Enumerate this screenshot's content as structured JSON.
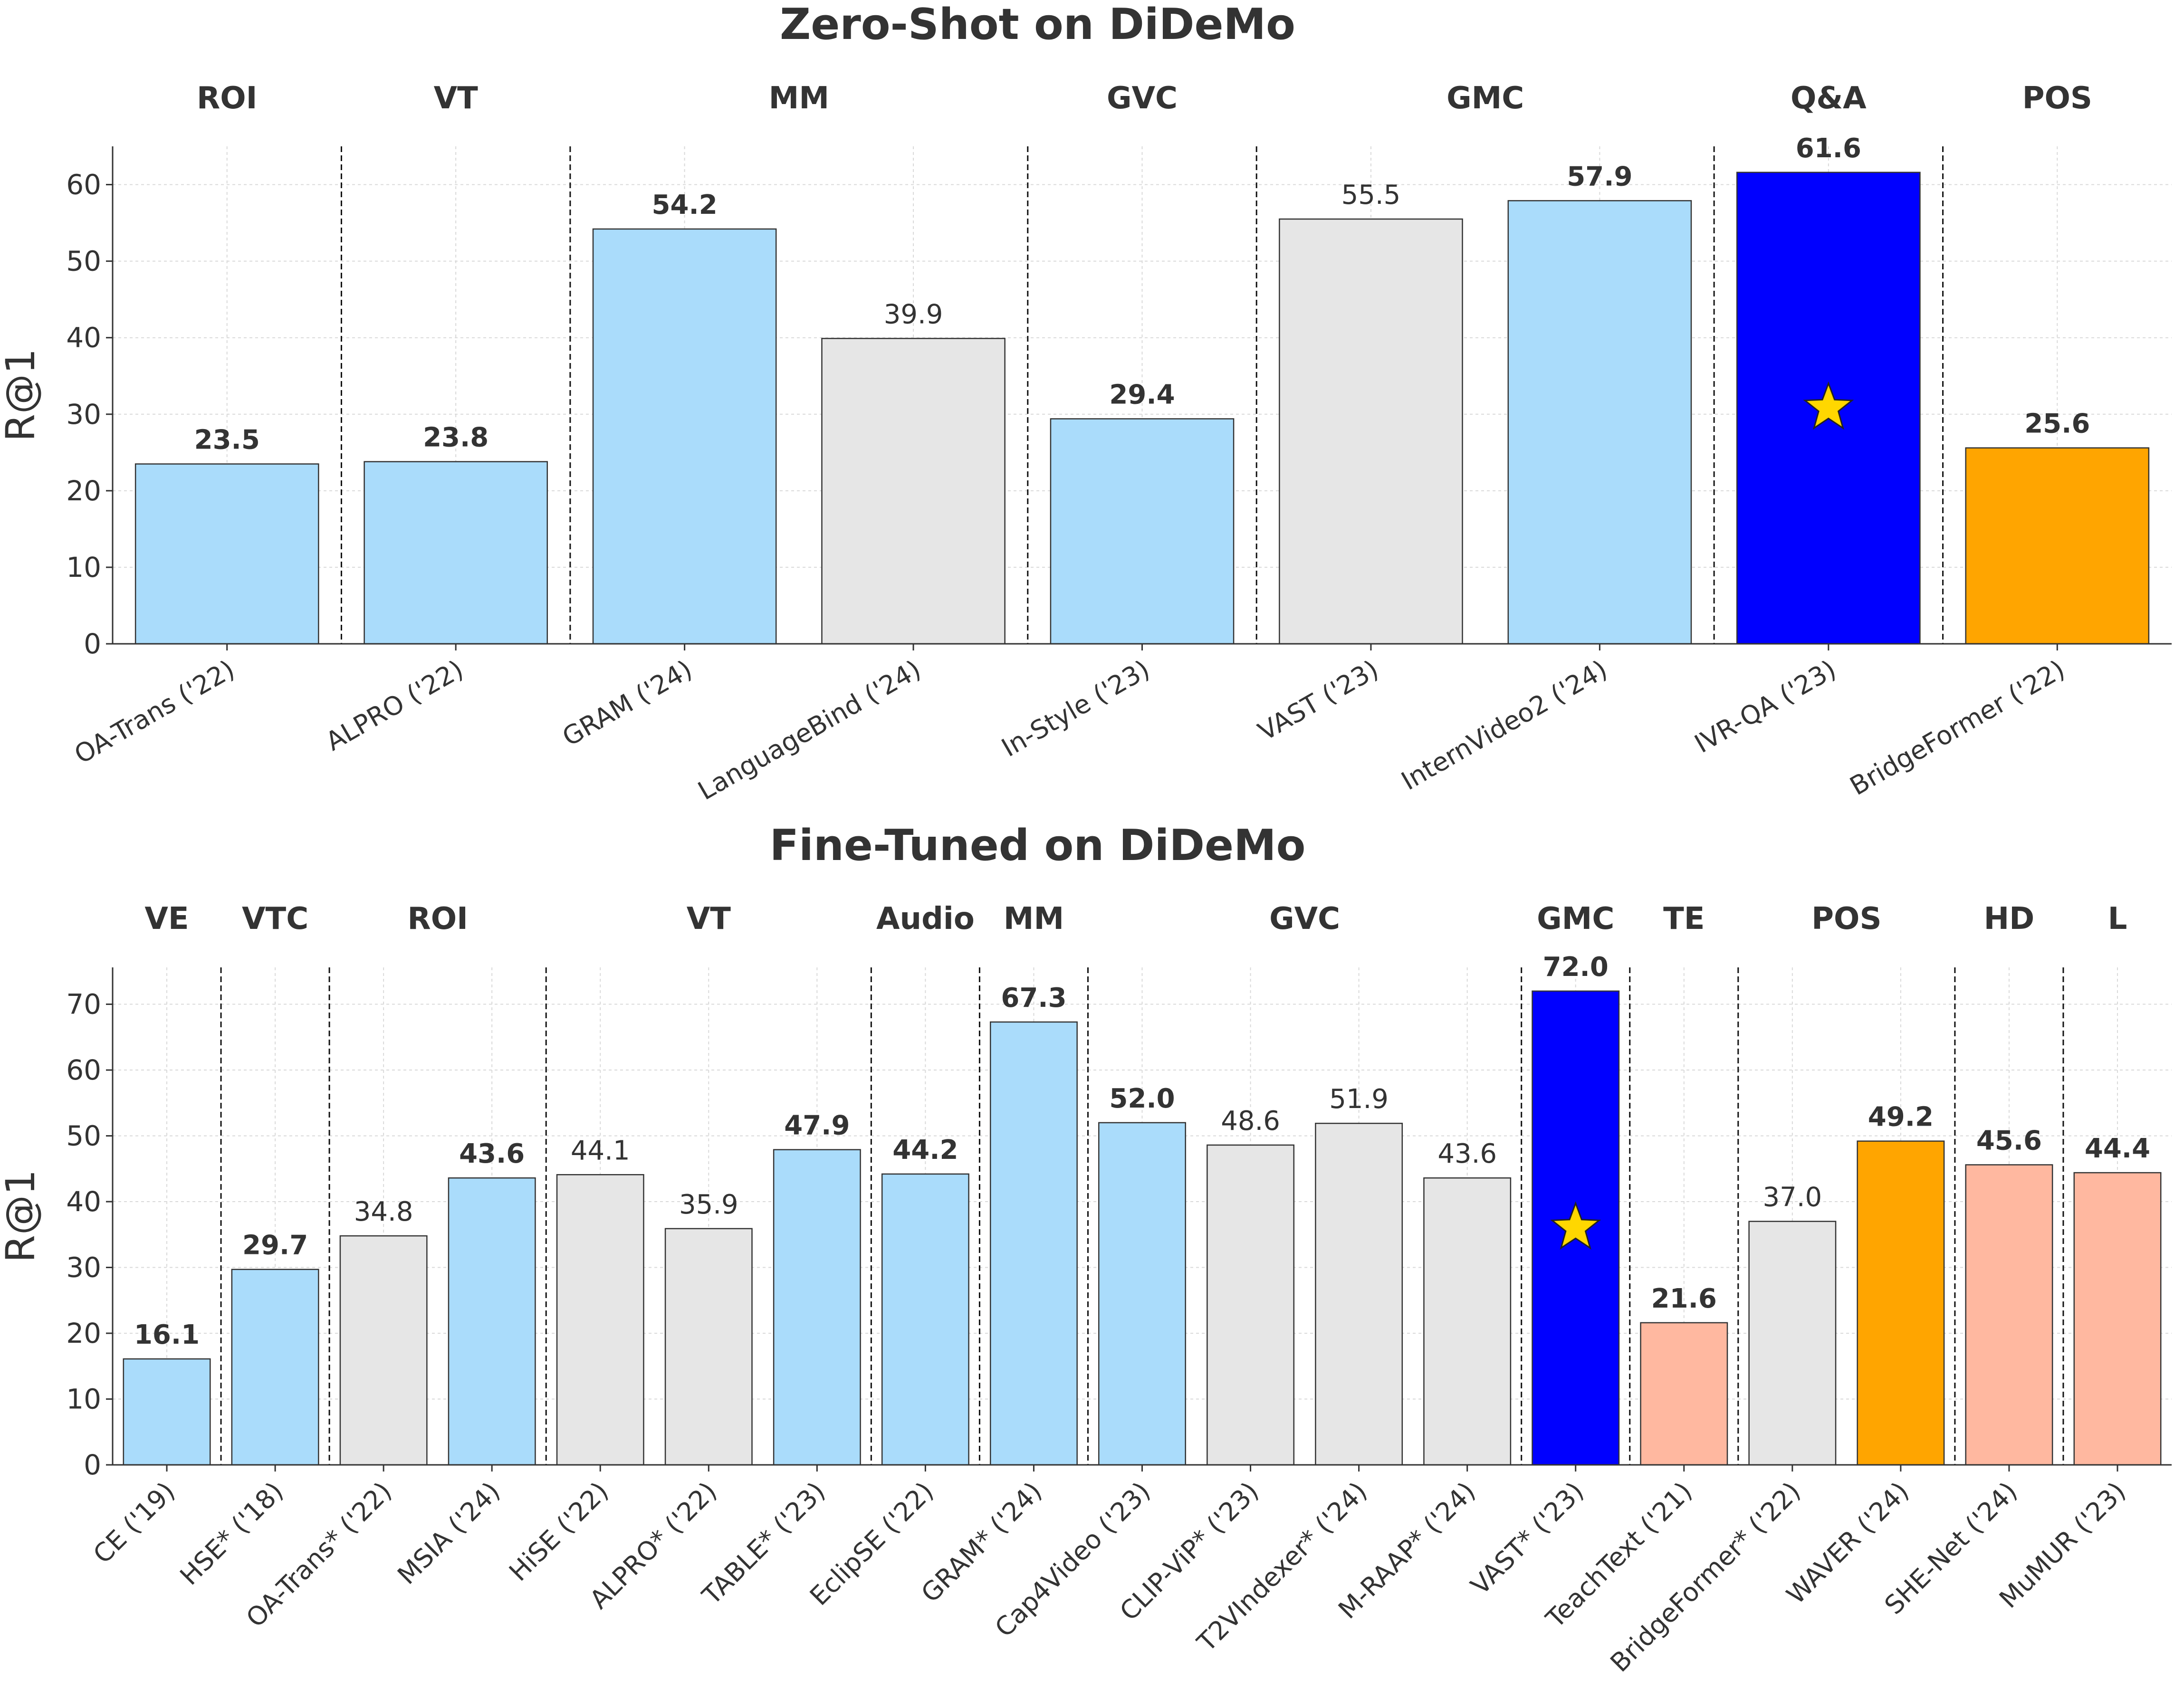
{
  "chart_data": [
    {
      "type": "bar",
      "title": "Zero-Shot on DiDeMo",
      "ylabel": "R@1",
      "xlabel": "",
      "ylim": [
        0,
        65
      ],
      "yticks": [
        0,
        10,
        20,
        30,
        40,
        50,
        60
      ],
      "grid": true,
      "categories": [
        "OA-Trans ('22)",
        "ALPRO ('22)",
        "GRAM ('24)",
        "LanguageBind ('24)",
        "In-Style ('23)",
        "VAST ('23)",
        "InternVideo2 ('24)",
        "IVR-QA ('23)",
        "BridgeFormer ('22)"
      ],
      "values": [
        23.5,
        23.8,
        54.2,
        39.9,
        29.4,
        55.5,
        57.9,
        61.6,
        25.6
      ],
      "value_labels": [
        "23.5",
        "23.8",
        "54.2",
        "39.9",
        "29.4",
        "55.5",
        "57.9",
        "61.6",
        "25.6"
      ],
      "bold_labels": [
        true,
        true,
        true,
        false,
        true,
        false,
        true,
        true,
        true
      ],
      "colors": [
        "#aadcfb",
        "#aadcfb",
        "#aadcfb",
        "#e6e6e6",
        "#aadcfb",
        "#e6e6e6",
        "#aadcfb",
        "#0000ff",
        "#ffa500"
      ],
      "star_index": 7,
      "groups": [
        {
          "label": "ROI",
          "start": 0,
          "end": 0
        },
        {
          "label": "VT",
          "start": 1,
          "end": 1
        },
        {
          "label": "MM",
          "start": 2,
          "end": 3
        },
        {
          "label": "GVC",
          "start": 4,
          "end": 4
        },
        {
          "label": "GMC",
          "start": 5,
          "end": 6
        },
        {
          "label": "Q&A",
          "start": 7,
          "end": 7
        },
        {
          "label": "POS",
          "start": 8,
          "end": 8
        }
      ]
    },
    {
      "type": "bar",
      "title": "Fine-Tuned on DiDeMo",
      "ylabel": "R@1",
      "xlabel": "",
      "ylim": [
        0,
        75.6
      ],
      "yticks": [
        0,
        10,
        20,
        30,
        40,
        50,
        60,
        70
      ],
      "grid": true,
      "categories": [
        "CE ('19)",
        "HSE* ('18)",
        "OA-Trans* ('22)",
        "MSIA ('24)",
        "HiSE ('22)",
        "ALPRO* ('22)",
        "TABLE* ('23)",
        "EclipSE ('22)",
        "GRAM* ('24)",
        "Cap4Video ('23)",
        "CLIP-ViP* ('23)",
        "T2VIndexer* ('24)",
        "M-RAAP* ('24)",
        "VAST* ('23)",
        "TeachText ('21)",
        "BridgeFormer* ('22)",
        "WAVER ('24)",
        "SHE-Net ('24)",
        "MuMUR ('23)"
      ],
      "values": [
        16.1,
        29.7,
        34.8,
        43.6,
        44.1,
        35.9,
        47.9,
        44.2,
        67.3,
        52.0,
        48.6,
        51.9,
        43.6,
        72.0,
        21.6,
        37.0,
        49.2,
        45.6,
        44.4
      ],
      "value_labels": [
        "16.1",
        "29.7",
        "34.8",
        "43.6",
        "44.1",
        "35.9",
        "47.9",
        "44.2",
        "67.3",
        "52.0",
        "48.6",
        "51.9",
        "43.6",
        "72.0",
        "21.6",
        "37.0",
        "49.2",
        "45.6",
        "44.4"
      ],
      "bold_labels": [
        true,
        true,
        false,
        true,
        false,
        false,
        true,
        true,
        true,
        true,
        false,
        false,
        false,
        true,
        true,
        false,
        true,
        true,
        true
      ],
      "colors": [
        "#aadcfb",
        "#aadcfb",
        "#e6e6e6",
        "#aadcfb",
        "#e6e6e6",
        "#e6e6e6",
        "#aadcfb",
        "#aadcfb",
        "#aadcfb",
        "#aadcfb",
        "#e6e6e6",
        "#e6e6e6",
        "#e6e6e6",
        "#0000ff",
        "#ffb8a0",
        "#e6e6e6",
        "#ffa500",
        "#ffb8a0",
        "#ffb8a0"
      ],
      "star_index": 13,
      "groups": [
        {
          "label": "VE",
          "start": 0,
          "end": 0
        },
        {
          "label": "VTC",
          "start": 1,
          "end": 1
        },
        {
          "label": "ROI",
          "start": 2,
          "end": 3
        },
        {
          "label": "VT",
          "start": 4,
          "end": 6
        },
        {
          "label": "Audio",
          "start": 7,
          "end": 7
        },
        {
          "label": "MM",
          "start": 8,
          "end": 8
        },
        {
          "label": "GVC",
          "start": 9,
          "end": 12
        },
        {
          "label": "GMC",
          "start": 13,
          "end": 13
        },
        {
          "label": "TE",
          "start": 14,
          "end": 14
        },
        {
          "label": "POS",
          "start": 15,
          "end": 16
        },
        {
          "label": "HD",
          "start": 17,
          "end": 17
        },
        {
          "label": "L",
          "start": 18,
          "end": 18
        }
      ]
    }
  ]
}
